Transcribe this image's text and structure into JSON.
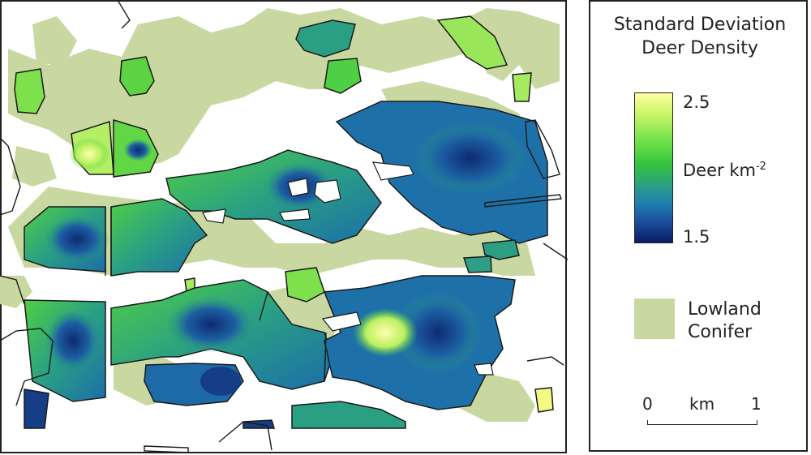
{
  "legend": {
    "title_line1": "Standard Deviation",
    "title_line2": "Deer Density",
    "colorbar": {
      "max_label": "2.5",
      "mid_label_base": "Deer km",
      "mid_label_exp": "-2",
      "min_label": "1.5",
      "colors": [
        "#ffff9f",
        "#c9f56a",
        "#6fe24a",
        "#33c23e",
        "#2aa083",
        "#1e7fb0",
        "#1a4f9e",
        "#0b1d63"
      ]
    },
    "lowland": {
      "line1": "Lowland",
      "line2": "Conifer",
      "color": "#c9d8a1"
    },
    "scalebar": {
      "left": "0",
      "unit": "km",
      "right": "1"
    }
  },
  "colors": {
    "high": "#f2fa82",
    "green": "#55d23f",
    "teal": "#2e9e86",
    "blue": "#1f6fa8",
    "dark": "#163e86",
    "outline": "#1a1a1a"
  }
}
